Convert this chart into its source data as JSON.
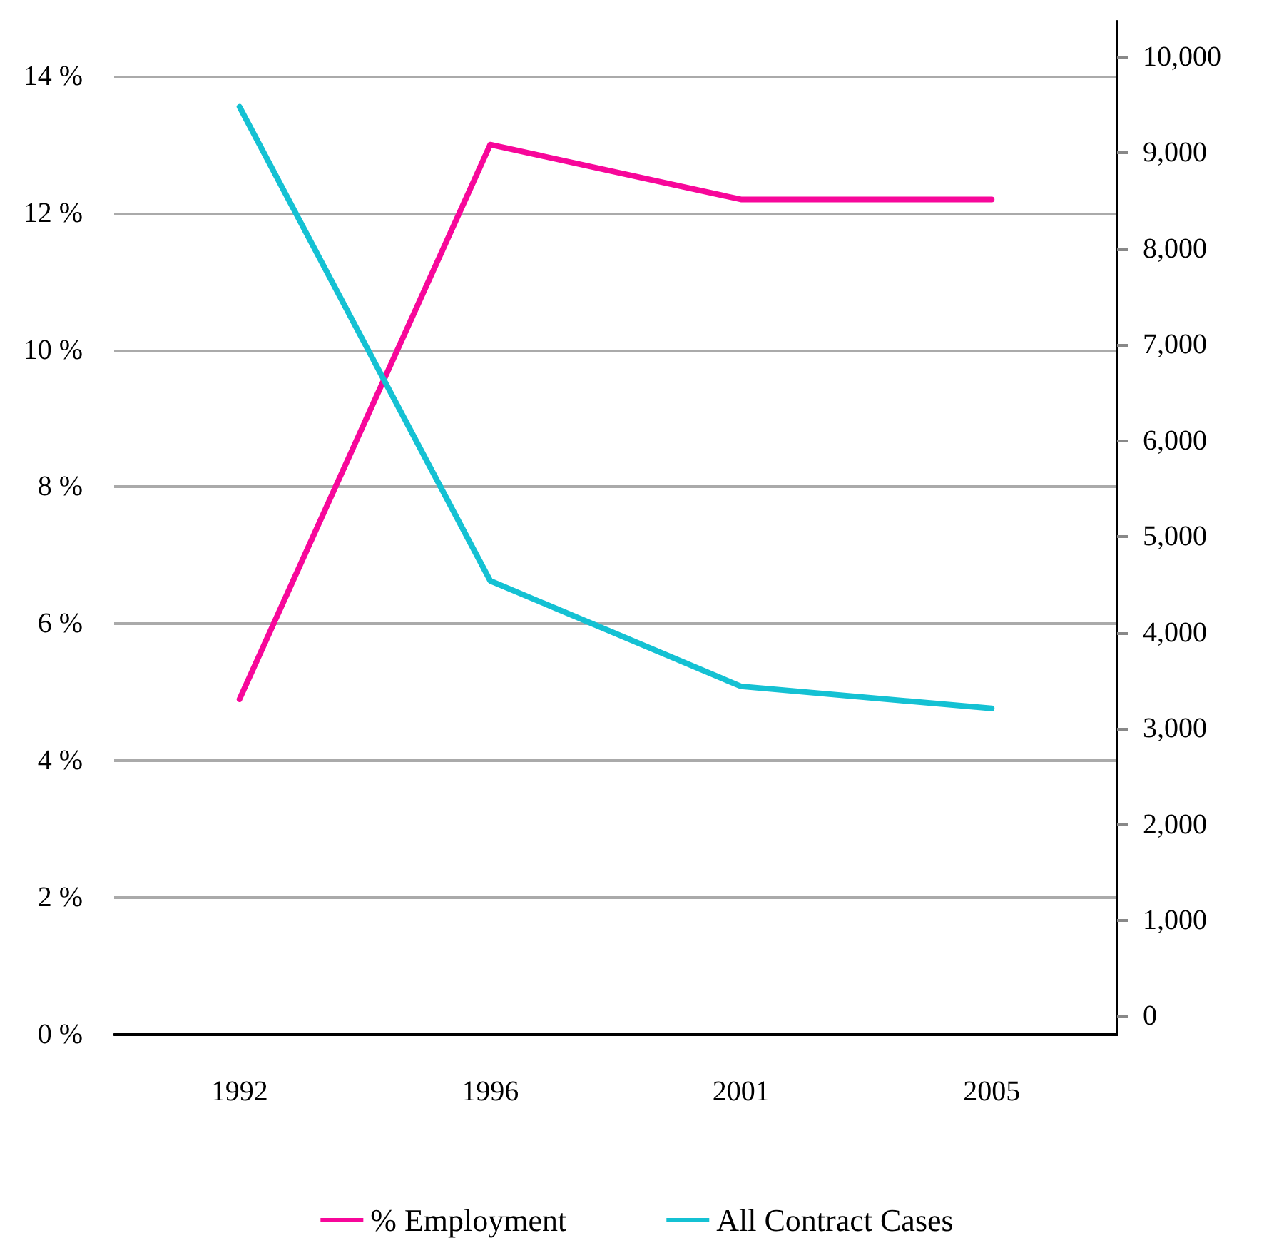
{
  "chart_data": {
    "type": "line",
    "categories": [
      "1992",
      "1996",
      "2001",
      "2005"
    ],
    "series": [
      {
        "name": "% Employment",
        "color": "#f7079a",
        "values": [
          4.9,
          13.0,
          12.2,
          12.2
        ]
      },
      {
        "name": "All Contract Cases",
        "color": "#14c1d3",
        "values": [
          9480,
          4540,
          3440,
          3210
        ],
        "axis": "y2"
      }
    ],
    "ylim": [
      0,
      14.8
    ],
    "yticks": [
      {
        "value": 0,
        "label": "0 %"
      },
      {
        "value": 2,
        "label": "2 %"
      },
      {
        "value": 4,
        "label": "4 %"
      },
      {
        "value": 6,
        "label": "6 %"
      },
      {
        "value": 8,
        "label": "8 %"
      },
      {
        "value": 10,
        "label": "10 %"
      },
      {
        "value": 12,
        "label": "12 %"
      },
      {
        "value": 14,
        "label": "14 %"
      }
    ],
    "y2lim": [
      -190,
      10370
    ],
    "y2ticks": [
      {
        "value": 0,
        "label": "0"
      },
      {
        "value": 1000,
        "label": "1,000"
      },
      {
        "value": 2000,
        "label": "2,000"
      },
      {
        "value": 3000,
        "label": "3,000"
      },
      {
        "value": 4000,
        "label": "4,000"
      },
      {
        "value": 5000,
        "label": "5,000"
      },
      {
        "value": 6000,
        "label": "6,000"
      },
      {
        "value": 7000,
        "label": "7,000"
      },
      {
        "value": 8000,
        "label": "8,000"
      },
      {
        "value": 9000,
        "label": "9,000"
      },
      {
        "value": 10000,
        "label": "10,000"
      }
    ],
    "grid": "y",
    "legend": "bottom",
    "marker": "none",
    "line_style": "solid"
  }
}
